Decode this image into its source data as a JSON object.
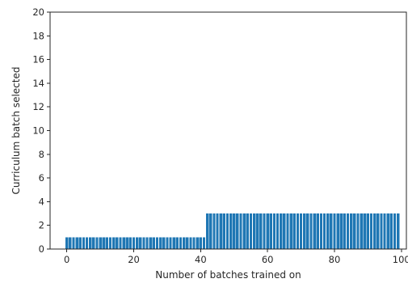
{
  "chart_data": {
    "type": "bar",
    "title": "",
    "xlabel": "Number of batches trained on",
    "ylabel": "Curriculum batch selected",
    "xlim": [
      -5,
      101.5
    ],
    "ylim": [
      0,
      20
    ],
    "xticks": [
      "0",
      "20",
      "40",
      "60",
      "80",
      "100"
    ],
    "yticks": [
      "0",
      "2",
      "4",
      "6",
      "8",
      "10",
      "12",
      "14",
      "16",
      "18",
      "20"
    ],
    "grid": false,
    "bar_color": "#1f77b4",
    "x": [
      0,
      1,
      2,
      3,
      4,
      5,
      6,
      7,
      8,
      9,
      10,
      11,
      12,
      13,
      14,
      15,
      16,
      17,
      18,
      19,
      20,
      21,
      22,
      23,
      24,
      25,
      26,
      27,
      28,
      29,
      30,
      31,
      32,
      33,
      34,
      35,
      36,
      37,
      38,
      39,
      40,
      41,
      42,
      43,
      44,
      45,
      46,
      47,
      48,
      49,
      50,
      51,
      52,
      53,
      54,
      55,
      56,
      57,
      58,
      59,
      60,
      61,
      62,
      63,
      64,
      65,
      66,
      67,
      68,
      69,
      70,
      71,
      72,
      73,
      74,
      75,
      76,
      77,
      78,
      79,
      80,
      81,
      82,
      83,
      84,
      85,
      86,
      87,
      88,
      89,
      90,
      91,
      92,
      93,
      94,
      95,
      96,
      97,
      98,
      99
    ],
    "values": [
      1,
      1,
      1,
      1,
      1,
      1,
      1,
      1,
      1,
      1,
      1,
      1,
      1,
      1,
      1,
      1,
      1,
      1,
      1,
      1,
      1,
      1,
      1,
      1,
      1,
      1,
      1,
      1,
      1,
      1,
      1,
      1,
      1,
      1,
      1,
      1,
      1,
      1,
      1,
      1,
      1,
      1,
      3,
      3,
      3,
      3,
      3,
      3,
      3,
      3,
      3,
      3,
      3,
      3,
      3,
      3,
      3,
      3,
      3,
      3,
      3,
      3,
      3,
      3,
      3,
      3,
      3,
      3,
      3,
      3,
      3,
      3,
      3,
      3,
      3,
      3,
      3,
      3,
      3,
      3,
      3,
      3,
      3,
      3,
      3,
      3,
      3,
      3,
      3,
      3,
      3,
      3,
      3,
      3,
      3,
      3,
      3,
      3,
      3,
      3
    ]
  }
}
